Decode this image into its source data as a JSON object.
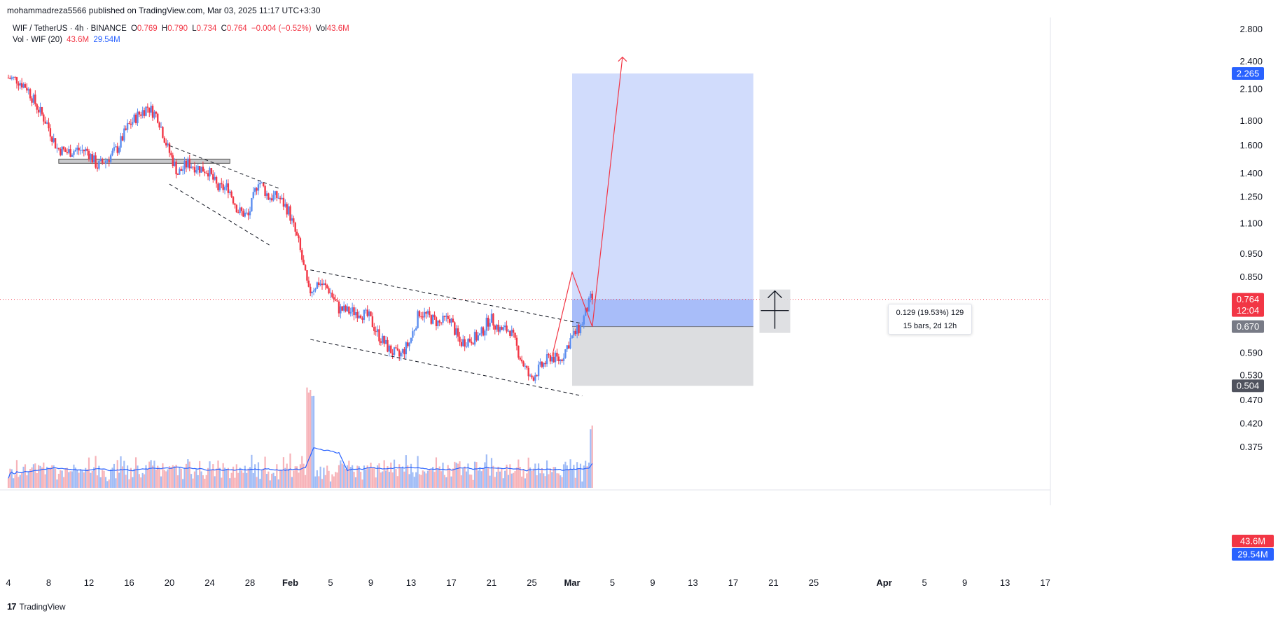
{
  "publisher": "mohammadreza5566 published on TradingView.com, Mar 03, 2025 11:17 UTC+3:30",
  "legend": {
    "symbol": "WIF / TetherUS · 4h · BINANCE",
    "o_label": "O",
    "o": "0.769",
    "h_label": "H",
    "h": "0.790",
    "l_label": "L",
    "l": "0.734",
    "c_label": "C",
    "c": "0.764",
    "change": "−0.004 (−0.52%)",
    "vol_label": "Vol",
    "vol": "43.6M",
    "vol_ind": "Vol · WIF (20)",
    "vol_ind_v1": "43.6M",
    "vol_ind_v2": "29.54M"
  },
  "measure": {
    "line1": "0.129 (19.53%) 129",
    "line2": "15 bars, 2d 12h"
  },
  "footer": {
    "logo": "17",
    "brand": "TradingView"
  },
  "colors": {
    "up": "#5b8def",
    "down": "#f23645",
    "target_zone": "#c9d6fb",
    "entry_zone": "#9db5f7",
    "stop_zone": "#dcdde0",
    "price_tag": "#f23645",
    "entry_tag": "#787b86",
    "stop_tag": "#50535e",
    "target_tag": "#2962ff"
  },
  "chart_data": {
    "type": "candlestick",
    "symbol": "WIF / TetherUS",
    "interval": "4h",
    "y_scale": "log",
    "y_ticks": [
      2.8,
      2.4,
      2.1,
      1.8,
      1.6,
      1.4,
      1.25,
      1.1,
      0.95,
      0.85,
      0.59,
      0.53,
      0.47,
      0.42,
      0.375
    ],
    "y_tick_labels": [
      "2.800",
      "2.400",
      "2.100",
      "1.800",
      "1.600",
      "1.400",
      "1.250",
      "1.100",
      "0.950",
      "0.850",
      "0.590",
      "0.530",
      "0.470",
      "0.420",
      "0.375"
    ],
    "x_ticks": [
      {
        "date": "2025-01-04",
        "label": "4"
      },
      {
        "date": "2025-01-08",
        "label": "8"
      },
      {
        "date": "2025-01-12",
        "label": "12"
      },
      {
        "date": "2025-01-16",
        "label": "16"
      },
      {
        "date": "2025-01-20",
        "label": "20"
      },
      {
        "date": "2025-01-24",
        "label": "24"
      },
      {
        "date": "2025-01-28",
        "label": "28"
      },
      {
        "date": "2025-02-01",
        "label": "Feb"
      },
      {
        "date": "2025-02-05",
        "label": "5"
      },
      {
        "date": "2025-02-09",
        "label": "9"
      },
      {
        "date": "2025-02-13",
        "label": "13"
      },
      {
        "date": "2025-02-17",
        "label": "17"
      },
      {
        "date": "2025-02-21",
        "label": "21"
      },
      {
        "date": "2025-02-25",
        "label": "25"
      },
      {
        "date": "2025-03-01",
        "label": "Mar"
      },
      {
        "date": "2025-03-05",
        "label": "5"
      },
      {
        "date": "2025-03-09",
        "label": "9"
      },
      {
        "date": "2025-03-13",
        "label": "13"
      },
      {
        "date": "2025-03-17",
        "label": "17"
      },
      {
        "date": "2025-03-21",
        "label": "21"
      },
      {
        "date": "2025-03-25",
        "label": "25"
      },
      {
        "date": "2025-04-01",
        "label": "Apr"
      },
      {
        "date": "2025-04-05",
        "label": "5"
      },
      {
        "date": "2025-04-09",
        "label": "9"
      },
      {
        "date": "2025-04-13",
        "label": "13"
      },
      {
        "date": "2025-04-17",
        "label": "17"
      }
    ],
    "x_range": [
      "2025-01-04",
      "2025-04-17"
    ],
    "price_path": [
      [
        "2025-01-04",
        2.22
      ],
      [
        "2025-01-05",
        2.2
      ],
      [
        "2025-01-06",
        2.12
      ],
      [
        "2025-01-07",
        1.93
      ],
      [
        "2025-01-08",
        1.78
      ],
      [
        "2025-01-09",
        1.58
      ],
      [
        "2025-01-10",
        1.55
      ],
      [
        "2025-01-11",
        1.57
      ],
      [
        "2025-01-12",
        1.56
      ],
      [
        "2025-01-13",
        1.45
      ],
      [
        "2025-01-14",
        1.5
      ],
      [
        "2025-01-15",
        1.58
      ],
      [
        "2025-01-16",
        1.75
      ],
      [
        "2025-01-17",
        1.85
      ],
      [
        "2025-01-18",
        1.93
      ],
      [
        "2025-01-19",
        1.84
      ],
      [
        "2025-01-20",
        1.58
      ],
      [
        "2025-01-21",
        1.4
      ],
      [
        "2025-01-22",
        1.47
      ],
      [
        "2025-01-23",
        1.44
      ],
      [
        "2025-01-24",
        1.42
      ],
      [
        "2025-01-25",
        1.3
      ],
      [
        "2025-01-26",
        1.31
      ],
      [
        "2025-01-27",
        1.17
      ],
      [
        "2025-01-28",
        1.14
      ],
      [
        "2025-01-29",
        1.36
      ],
      [
        "2025-01-30",
        1.25
      ],
      [
        "2025-01-31",
        1.25
      ],
      [
        "2025-02-01",
        1.17
      ],
      [
        "2025-02-02",
        1.0
      ],
      [
        "2025-02-03",
        0.79
      ],
      [
        "2025-02-04",
        0.83
      ],
      [
        "2025-02-05",
        0.8
      ],
      [
        "2025-02-06",
        0.73
      ],
      [
        "2025-02-07",
        0.72
      ],
      [
        "2025-02-08",
        0.72
      ],
      [
        "2025-02-09",
        0.7
      ],
      [
        "2025-02-10",
        0.64
      ],
      [
        "2025-02-11",
        0.6
      ],
      [
        "2025-02-12",
        0.58
      ],
      [
        "2025-02-13",
        0.62
      ],
      [
        "2025-02-14",
        0.72
      ],
      [
        "2025-02-15",
        0.7
      ],
      [
        "2025-02-16",
        0.68
      ],
      [
        "2025-02-17",
        0.7
      ],
      [
        "2025-02-18",
        0.62
      ],
      [
        "2025-02-19",
        0.63
      ],
      [
        "2025-02-20",
        0.64
      ],
      [
        "2025-02-21",
        0.7
      ],
      [
        "2025-02-22",
        0.66
      ],
      [
        "2025-02-23",
        0.66
      ],
      [
        "2025-02-24",
        0.58
      ],
      [
        "2025-02-25",
        0.52
      ],
      [
        "2025-02-26",
        0.55
      ],
      [
        "2025-02-27",
        0.58
      ],
      [
        "2025-02-28",
        0.57
      ],
      [
        "2025-03-01",
        0.63
      ],
      [
        "2025-03-02",
        0.67
      ],
      [
        "2025-03-03",
        0.764
      ]
    ],
    "last_price": 0.764,
    "countdown": "12:04",
    "long_position": {
      "entry": 0.67,
      "target": 2.265,
      "stop": 0.504,
      "start": "2025-03-01",
      "end": "2025-03-19"
    },
    "price_tags": {
      "last": "0.764",
      "entry": "0.670",
      "target": "2.265",
      "stop": "0.504"
    },
    "volume_tags": {
      "vol": "43.6M",
      "ma": "29.54M"
    },
    "drawings": {
      "support_zone": {
        "from": "2025-01-09",
        "to": "2025-01-26",
        "top": 1.5,
        "bottom": 1.47
      },
      "channel1_upper": [
        [
          "2025-01-20",
          1.6
        ],
        [
          "2025-01-31",
          1.3
        ]
      ],
      "channel1_lower": [
        [
          "2025-01-20",
          1.33
        ],
        [
          "2025-01-30",
          0.99
        ]
      ],
      "channel2_upper": [
        [
          "2025-02-03",
          0.88
        ],
        [
          "2025-03-02",
          0.68
        ]
      ],
      "channel2_lower": [
        [
          "2025-02-03",
          0.63
        ],
        [
          "2025-03-02",
          0.48
        ]
      ],
      "projection_path": [
        [
          "2025-02-27",
          0.58
        ],
        [
          "2025-03-01",
          0.87
        ],
        [
          "2025-03-03",
          0.67
        ],
        [
          "2025-03-06",
          2.45
        ]
      ]
    }
  }
}
